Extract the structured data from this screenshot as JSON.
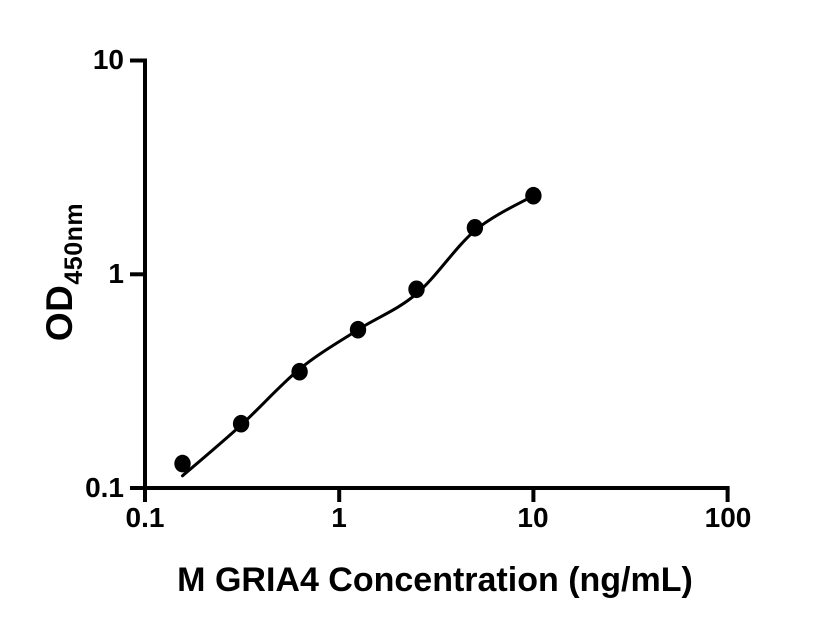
{
  "figure": {
    "background_color": "#ffffff",
    "ink_color": "#000000"
  },
  "chart_data": {
    "type": "scatter",
    "title": "",
    "xlabel": "M GRIA4 Concentration (ng/mL)",
    "ylabel_main": "OD",
    "ylabel_subscript": "450nm",
    "x_scale": "log10",
    "y_scale": "log10",
    "xlim": [
      0.1,
      100
    ],
    "ylim": [
      0.1,
      10
    ],
    "grid": false,
    "legend": false,
    "x_ticks": [
      {
        "value": 0.1,
        "label": "0.1"
      },
      {
        "value": 1,
        "label": "1"
      },
      {
        "value": 10,
        "label": "10"
      },
      {
        "value": 100,
        "label": "100"
      }
    ],
    "y_ticks": [
      {
        "value": 10,
        "label": "10"
      },
      {
        "value": 1,
        "label": "1"
      },
      {
        "value": 0.1,
        "label": "0.1"
      }
    ],
    "series": [
      {
        "name": "standard-curve-points",
        "marker": "filled-circle",
        "color": "#000000",
        "points": [
          {
            "x": 0.156,
            "y": 0.13
          },
          {
            "x": 0.3125,
            "y": 0.2
          },
          {
            "x": 0.625,
            "y": 0.35
          },
          {
            "x": 1.25,
            "y": 0.55
          },
          {
            "x": 2.5,
            "y": 0.85
          },
          {
            "x": 5,
            "y": 1.65
          },
          {
            "x": 10,
            "y": 2.33
          }
        ]
      }
    ],
    "fit_curve": {
      "name": "four-parameter-logistic-fit-line",
      "color": "#000000",
      "x": [
        0.156,
        0.3125,
        0.625,
        1.25,
        2.5,
        5,
        10
      ],
      "y": [
        0.114,
        0.197,
        0.36,
        0.55,
        0.81,
        1.6,
        2.33
      ]
    }
  }
}
